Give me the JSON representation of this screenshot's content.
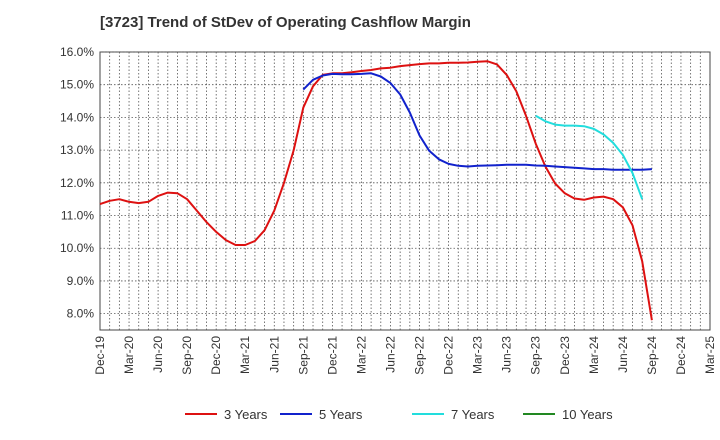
{
  "chart_data": {
    "type": "line",
    "title": "[3723]  Trend of StDev of Operating Cashflow Margin",
    "xlabel": "",
    "ylabel": "",
    "ylim": [
      7.5,
      16.0
    ],
    "y_ticks": [
      "16.0%",
      "15.0%",
      "14.0%",
      "13.0%",
      "12.0%",
      "11.0%",
      "10.0%",
      "9.0%",
      "8.0%"
    ],
    "y_tick_values": [
      16,
      15,
      14,
      13,
      12,
      11,
      10,
      9,
      8
    ],
    "x_ticks": [
      "Dec-19",
      "Mar-20",
      "Jun-20",
      "Sep-20",
      "Dec-20",
      "Mar-21",
      "Jun-21",
      "Sep-21",
      "Dec-21",
      "Mar-22",
      "Jun-22",
      "Sep-22",
      "Dec-22",
      "Mar-23",
      "Jun-23",
      "Sep-23",
      "Dec-23",
      "Mar-24",
      "Jun-24",
      "Sep-24",
      "Dec-24",
      "Mar-25"
    ],
    "grid": true,
    "legend_position": "bottom",
    "series": [
      {
        "name": "3 Years",
        "color": "#dd1111",
        "start_index": 0,
        "values": [
          11.35,
          11.45,
          11.5,
          11.42,
          11.38,
          11.42,
          11.6,
          11.7,
          11.68,
          11.5,
          11.15,
          10.8,
          10.5,
          10.25,
          10.1,
          10.1,
          10.22,
          10.55,
          11.15,
          12.0,
          13.0,
          14.3,
          14.95,
          15.3,
          15.35,
          15.35,
          15.38,
          15.42,
          15.45,
          15.5,
          15.52,
          15.57,
          15.6,
          15.63,
          15.65,
          15.65,
          15.67,
          15.67,
          15.68,
          15.7,
          15.72,
          15.62,
          15.3,
          14.8,
          14.05,
          13.2,
          12.5,
          11.98,
          11.68,
          11.52,
          11.48,
          11.55,
          11.58,
          11.5,
          11.25,
          10.7,
          9.6,
          7.8
        ]
      },
      {
        "name": "5 Years",
        "color": "#1122cc",
        "start_index": 21,
        "values": [
          14.85,
          15.15,
          15.28,
          15.33,
          15.32,
          15.32,
          15.33,
          15.35,
          15.25,
          15.05,
          14.7,
          14.15,
          13.45,
          12.98,
          12.72,
          12.58,
          12.52,
          12.5,
          12.52,
          12.53,
          12.54,
          12.55,
          12.55,
          12.55,
          12.53,
          12.52,
          12.5,
          12.48,
          12.46,
          12.44,
          12.42,
          12.42,
          12.4,
          12.4,
          12.4,
          12.4,
          12.42
        ]
      },
      {
        "name": "7 Years",
        "color": "#22dddd",
        "start_index": 45,
        "values": [
          14.05,
          13.88,
          13.78,
          13.75,
          13.75,
          13.73,
          13.65,
          13.48,
          13.22,
          12.85,
          12.3,
          11.5
        ]
      },
      {
        "name": "10 Years",
        "color": "#228822",
        "start_index": 0,
        "values": []
      }
    ]
  }
}
